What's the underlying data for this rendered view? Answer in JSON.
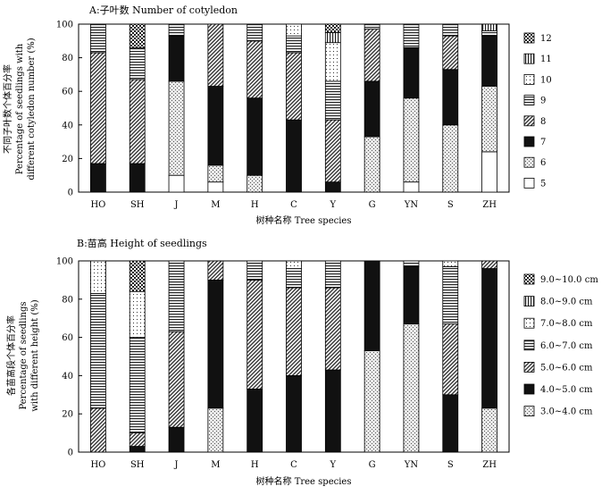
{
  "chart_data": [
    {
      "type": "bar",
      "stacked": true,
      "title": "A:子叶数  Number of cotyledon",
      "xlabel": "树种名称  Tree species",
      "ylabel": [
        "不同子叶数个体百分率",
        "Percentage of seedlings with",
        "different cotyledon number (%)"
      ],
      "ylim": [
        0,
        100
      ],
      "yticks": [
        0,
        20,
        40,
        60,
        80,
        100
      ],
      "legend_position": "right",
      "categories": [
        "HO",
        "SH",
        "J",
        "M",
        "H",
        "C",
        "Y",
        "G",
        "YN",
        "S",
        "ZH"
      ],
      "series": [
        {
          "name": "5",
          "pattern": "white",
          "values": [
            0,
            0,
            10,
            6,
            0,
            0,
            0,
            0,
            6,
            0,
            24
          ]
        },
        {
          "name": "6",
          "pattern": "stipple",
          "values": [
            0,
            0,
            56,
            10,
            10,
            0,
            0,
            33,
            50,
            40,
            39
          ]
        },
        {
          "name": "7",
          "pattern": "black",
          "values": [
            17,
            17,
            27,
            47,
            46,
            43,
            6,
            33,
            30,
            33,
            30
          ]
        },
        {
          "name": "8",
          "pattern": "diagonal",
          "values": [
            66,
            50,
            0,
            37,
            34,
            40,
            37,
            31,
            0,
            20,
            0
          ]
        },
        {
          "name": "9",
          "pattern": "horizontal",
          "values": [
            17,
            19,
            7,
            0,
            10,
            10,
            23,
            3,
            14,
            7,
            3
          ]
        },
        {
          "name": "10",
          "pattern": "dots",
          "values": [
            0,
            0,
            0,
            0,
            0,
            7,
            23,
            0,
            0,
            0,
            0
          ]
        },
        {
          "name": "11",
          "pattern": "vertical",
          "values": [
            0,
            0,
            0,
            0,
            0,
            0,
            6,
            0,
            0,
            0,
            4
          ]
        },
        {
          "name": "12",
          "pattern": "checker",
          "values": [
            0,
            14,
            0,
            0,
            0,
            0,
            5,
            0,
            0,
            0,
            0
          ]
        }
      ]
    },
    {
      "type": "bar",
      "stacked": true,
      "title": "B:苗高  Height of seedlings",
      "xlabel": "树种名称  Tree species",
      "ylabel": [
        "各苗高段个体百分率",
        "Percentage of seedlings",
        "with different height (%)"
      ],
      "ylim": [
        0,
        100
      ],
      "yticks": [
        0,
        20,
        40,
        60,
        80,
        100
      ],
      "legend_position": "right",
      "categories": [
        "HO",
        "SH",
        "J",
        "M",
        "H",
        "C",
        "Y",
        "G",
        "YN",
        "S",
        "ZH"
      ],
      "series": [
        {
          "name": "3.0~4.0 cm",
          "pattern": "stipple",
          "values": [
            0,
            0,
            0,
            23,
            0,
            0,
            0,
            53,
            67,
            0,
            23
          ]
        },
        {
          "name": "4.0~5.0 cm",
          "pattern": "black",
          "values": [
            0,
            3,
            13,
            67,
            33,
            40,
            43,
            47,
            30,
            30,
            73
          ]
        },
        {
          "name": "5.0~6.0 cm",
          "pattern": "diagonal",
          "values": [
            23,
            7,
            50,
            10,
            57,
            46,
            43,
            0,
            0,
            37,
            4
          ]
        },
        {
          "name": "6.0~7.0 cm",
          "pattern": "horizontal",
          "values": [
            60,
            50,
            37,
            0,
            10,
            10,
            14,
            0,
            3,
            30,
            0
          ]
        },
        {
          "name": "7.0~8.0 cm",
          "pattern": "dots",
          "values": [
            17,
            24,
            0,
            0,
            0,
            4,
            0,
            0,
            0,
            3,
            0
          ]
        },
        {
          "name": "8.0~9.0 cm",
          "pattern": "vertical",
          "values": [
            0,
            0,
            0,
            0,
            0,
            0,
            0,
            0,
            0,
            0,
            0
          ]
        },
        {
          "name": "9.0~10.0 cm",
          "pattern": "checker",
          "values": [
            0,
            16,
            0,
            0,
            0,
            0,
            0,
            0,
            0,
            0,
            0
          ]
        }
      ]
    }
  ]
}
